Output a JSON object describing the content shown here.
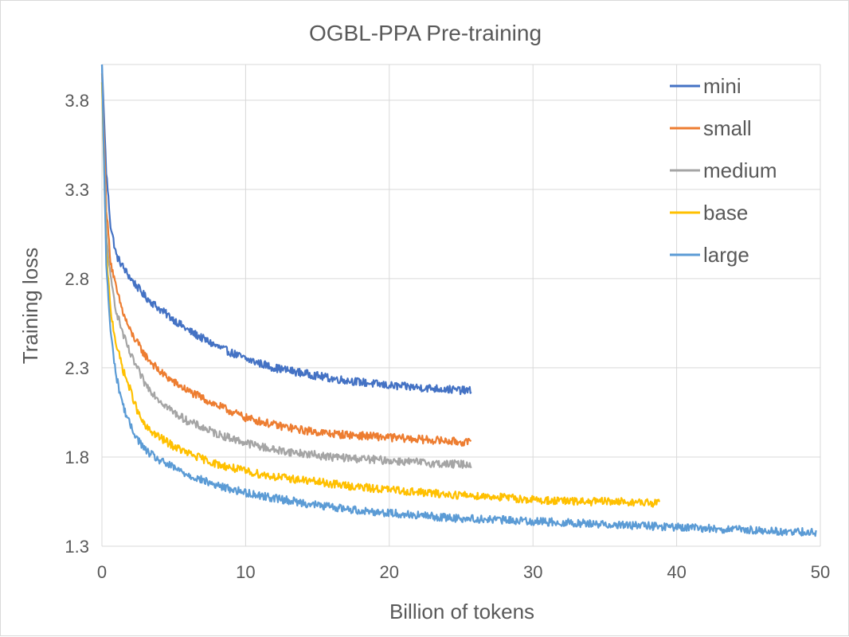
{
  "chart_data": {
    "type": "line",
    "title": "OGBL-PPA Pre-training",
    "xlabel": "Billion of tokens",
    "ylabel": "Training loss",
    "xlim": [
      0,
      50
    ],
    "ylim": [
      1.3,
      4.0
    ],
    "xticks": [
      0,
      10,
      20,
      30,
      40,
      50
    ],
    "yticks": [
      1.3,
      1.8,
      2.3,
      2.8,
      3.3,
      3.8
    ],
    "xtick_labels": [
      "0",
      "10",
      "20",
      "30",
      "40",
      "50"
    ],
    "ytick_labels": [
      "1.3",
      "1.8",
      "2.3",
      "2.8",
      "3.3",
      "3.8"
    ],
    "grid": "vertical and horizontal",
    "legend_position": "top-right",
    "series": [
      {
        "name": "mini",
        "color": "#4472C4",
        "x": [
          0,
          0.3,
          0.6,
          1,
          1.5,
          2,
          3,
          4,
          5,
          6,
          8,
          10,
          12,
          14,
          16,
          18,
          20,
          22,
          24,
          25.7
        ],
        "y": [
          4.0,
          3.4,
          3.1,
          2.93,
          2.86,
          2.8,
          2.7,
          2.63,
          2.57,
          2.51,
          2.42,
          2.35,
          2.3,
          2.27,
          2.24,
          2.22,
          2.2,
          2.19,
          2.18,
          2.17
        ]
      },
      {
        "name": "small",
        "color": "#ED7D31",
        "x": [
          0,
          0.3,
          0.6,
          1,
          1.5,
          2,
          3,
          4,
          5,
          6,
          8,
          10,
          12,
          14,
          16,
          18,
          20,
          22,
          24,
          25.7
        ],
        "y": [
          3.95,
          3.2,
          2.9,
          2.74,
          2.6,
          2.5,
          2.37,
          2.28,
          2.22,
          2.17,
          2.09,
          2.02,
          1.98,
          1.95,
          1.93,
          1.92,
          1.91,
          1.9,
          1.89,
          1.88
        ]
      },
      {
        "name": "medium",
        "color": "#A5A5A5",
        "x": [
          0,
          0.3,
          0.6,
          1,
          1.5,
          2,
          3,
          4,
          5,
          6,
          8,
          10,
          12,
          14,
          16,
          18,
          20,
          22,
          24,
          25.7
        ],
        "y": [
          3.9,
          3.05,
          2.8,
          2.62,
          2.48,
          2.37,
          2.21,
          2.12,
          2.05,
          2.0,
          1.93,
          1.88,
          1.84,
          1.82,
          1.8,
          1.79,
          1.78,
          1.77,
          1.76,
          1.76
        ]
      },
      {
        "name": "base",
        "color": "#FFC000",
        "x": [
          0,
          0.3,
          0.6,
          1,
          1.5,
          2,
          2.5,
          3,
          4,
          5,
          6,
          8,
          10,
          12,
          15,
          18,
          21,
          24,
          27,
          30,
          33,
          36,
          38.8
        ],
        "y": [
          3.9,
          2.95,
          2.62,
          2.43,
          2.28,
          2.17,
          2.05,
          1.97,
          1.91,
          1.86,
          1.82,
          1.76,
          1.72,
          1.69,
          1.66,
          1.63,
          1.61,
          1.59,
          1.58,
          1.56,
          1.55,
          1.55,
          1.54
        ]
      },
      {
        "name": "large",
        "color": "#5B9BD5",
        "x": [
          0,
          0.3,
          0.6,
          1,
          1.5,
          2,
          2.5,
          3,
          4,
          5,
          6,
          8,
          10,
          12,
          15,
          18,
          21,
          24,
          27,
          30,
          33,
          36,
          39,
          42,
          45,
          48,
          49.7
        ],
        "y": [
          4.0,
          2.88,
          2.5,
          2.25,
          2.08,
          1.97,
          1.9,
          1.84,
          1.78,
          1.74,
          1.7,
          1.64,
          1.6,
          1.57,
          1.53,
          1.5,
          1.48,
          1.46,
          1.45,
          1.44,
          1.43,
          1.42,
          1.41,
          1.4,
          1.39,
          1.38,
          1.38
        ]
      }
    ]
  }
}
